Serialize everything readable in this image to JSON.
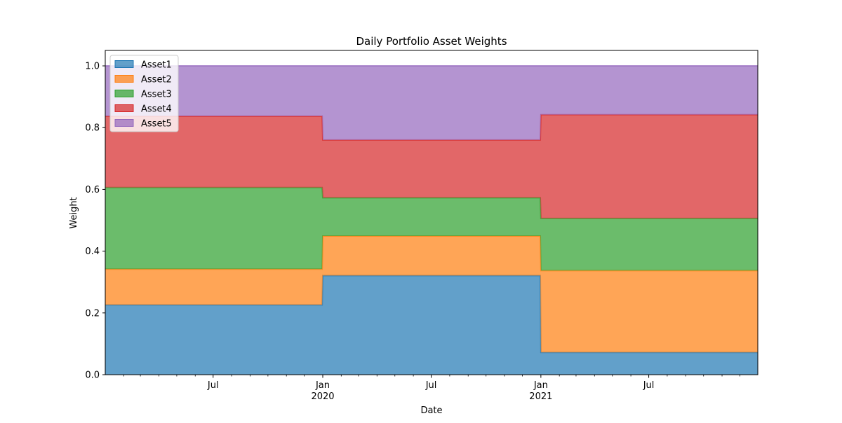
{
  "chart_data": {
    "type": "area",
    "stacked": true,
    "title": "Daily Portfolio Asset Weights",
    "xlabel": "Date",
    "ylabel": "Weight",
    "x_start": "2019-01-01",
    "x_end": "2021-12-31",
    "ylim": [
      0.0,
      1.05
    ],
    "y_ticks": [
      0.0,
      0.2,
      0.4,
      0.6,
      0.8,
      1.0
    ],
    "y_tick_labels": [
      "0.0",
      "0.2",
      "0.4",
      "0.6",
      "0.8",
      "1.0"
    ],
    "x_major_ticks": [
      {
        "date": "2019-07-01",
        "label": "Jul",
        "sublabel": ""
      },
      {
        "date": "2020-01-01",
        "label": "Jan",
        "sublabel": "2020"
      },
      {
        "date": "2020-07-01",
        "label": "Jul",
        "sublabel": ""
      },
      {
        "date": "2021-01-01",
        "label": "Jan",
        "sublabel": "2021"
      },
      {
        "date": "2021-07-01",
        "label": "Jul",
        "sublabel": ""
      }
    ],
    "x_minor_ticks": [
      "2019-02-01",
      "2019-03-01",
      "2019-04-01",
      "2019-05-01",
      "2019-06-01",
      "2019-08-01",
      "2019-09-01",
      "2019-10-01",
      "2019-11-01",
      "2019-12-01",
      "2020-02-01",
      "2020-03-01",
      "2020-04-01",
      "2020-05-01",
      "2020-06-01",
      "2020-08-01",
      "2020-09-01",
      "2020-10-01",
      "2020-11-01",
      "2020-12-01",
      "2021-02-01",
      "2021-03-01",
      "2021-04-01",
      "2021-05-01",
      "2021-06-01",
      "2021-08-01",
      "2021-09-01",
      "2021-10-01",
      "2021-11-01",
      "2021-12-01"
    ],
    "grid": false,
    "legend_position": "upper-left",
    "periods": [
      {
        "start": "2019-01-01",
        "end": "2019-12-31"
      },
      {
        "start": "2020-01-01",
        "end": "2020-12-31"
      },
      {
        "start": "2021-01-01",
        "end": "2021-12-31"
      }
    ],
    "series": [
      {
        "name": "Asset1",
        "color": "#1f77b4",
        "values": [
          0.226,
          0.321,
          0.072
        ]
      },
      {
        "name": "Asset2",
        "color": "#ff7f0e",
        "values": [
          0.116,
          0.128,
          0.265
        ]
      },
      {
        "name": "Asset3",
        "color": "#2ca02c",
        "values": [
          0.264,
          0.124,
          0.169
        ]
      },
      {
        "name": "Asset4",
        "color": "#d62728",
        "values": [
          0.231,
          0.187,
          0.336
        ]
      },
      {
        "name": "Asset5",
        "color": "#9467bd",
        "values": [
          0.163,
          0.24,
          0.158
        ]
      }
    ]
  }
}
